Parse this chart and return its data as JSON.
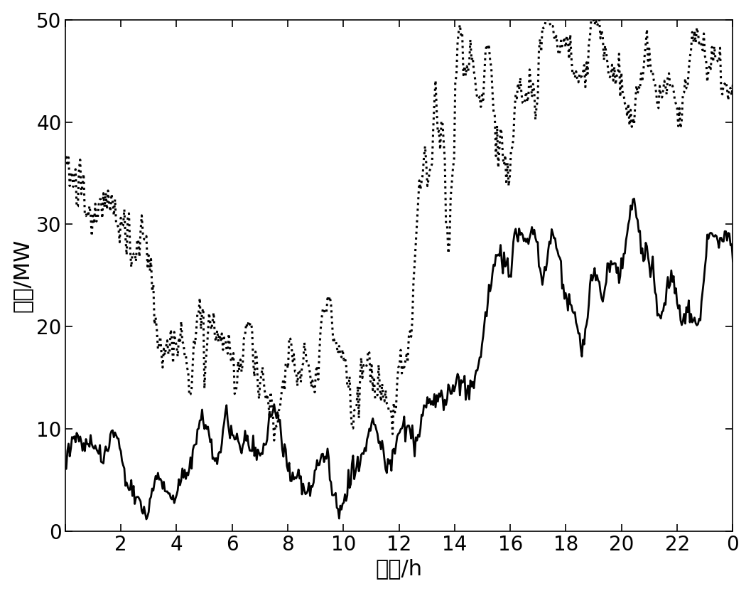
{
  "xlabel": "时间/h",
  "ylabel": "出力/MW",
  "xlim": [
    0,
    24
  ],
  "ylim": [
    0,
    50
  ],
  "xticks": [
    0,
    2,
    4,
    6,
    8,
    10,
    12,
    14,
    16,
    18,
    20,
    22,
    24
  ],
  "xticklabels": [
    "",
    "2",
    "4",
    "6",
    "8",
    "10",
    "12",
    "14",
    "16",
    "18",
    "20",
    "22",
    "0"
  ],
  "yticks": [
    0,
    10,
    20,
    30,
    40,
    50
  ],
  "yticklabels": [
    "0",
    "10",
    "20",
    "30",
    "40",
    "50"
  ],
  "solid_color": "#000000",
  "dotted_color": "#000000",
  "solid_linewidth": 2.0,
  "dotted_linewidth": 2.2,
  "xlabel_fontsize": 22,
  "ylabel_fontsize": 22,
  "tick_fontsize": 20,
  "background_color": "#ffffff",
  "figsize": [
    10.57,
    8.31
  ],
  "dpi": 100
}
